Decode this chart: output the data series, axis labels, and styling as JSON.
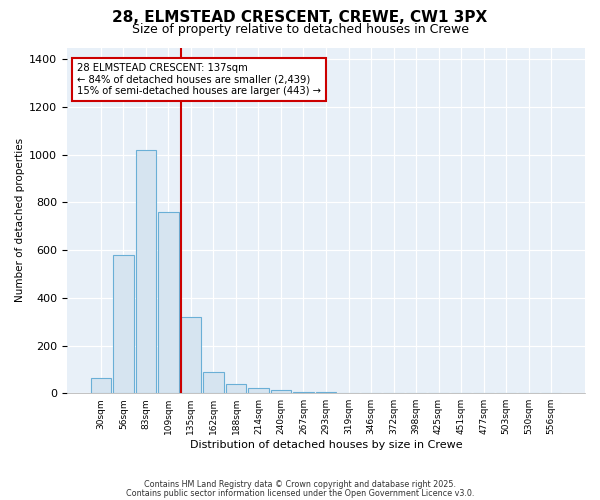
{
  "title": "28, ELMSTEAD CRESCENT, CREWE, CW1 3PX",
  "subtitle": "Size of property relative to detached houses in Crewe",
  "xlabel": "Distribution of detached houses by size in Crewe",
  "ylabel": "Number of detached properties",
  "categories": [
    "30sqm",
    "56sqm",
    "83sqm",
    "109sqm",
    "135sqm",
    "162sqm",
    "188sqm",
    "214sqm",
    "240sqm",
    "267sqm",
    "293sqm",
    "319sqm",
    "346sqm",
    "372sqm",
    "398sqm",
    "425sqm",
    "451sqm",
    "477sqm",
    "503sqm",
    "530sqm",
    "556sqm"
  ],
  "values": [
    65,
    580,
    1020,
    760,
    320,
    90,
    40,
    20,
    15,
    5,
    3,
    0,
    2,
    0,
    0,
    0,
    0,
    0,
    0,
    0,
    0
  ],
  "bar_color": "#d6e4f0",
  "bar_edge_color": "#6aafd6",
  "vline_index": 4,
  "vline_color": "#cc0000",
  "annotation_line1": "28 ELMSTEAD CRESCENT: 137sqm",
  "annotation_line2": "← 84% of detached houses are smaller (2,439)",
  "annotation_line3": "15% of semi-detached houses are larger (443) →",
  "annotation_box_edge": "#cc0000",
  "ylim": [
    0,
    1450
  ],
  "yticks": [
    0,
    200,
    400,
    600,
    800,
    1000,
    1200,
    1400
  ],
  "footer1": "Contains HM Land Registry data © Crown copyright and database right 2025.",
  "footer2": "Contains public sector information licensed under the Open Government Licence v3.0.",
  "fig_bg": "#ffffff",
  "plot_bg": "#e8f0f8",
  "title_fontsize": 11,
  "subtitle_fontsize": 9,
  "bar_width": 0.92
}
